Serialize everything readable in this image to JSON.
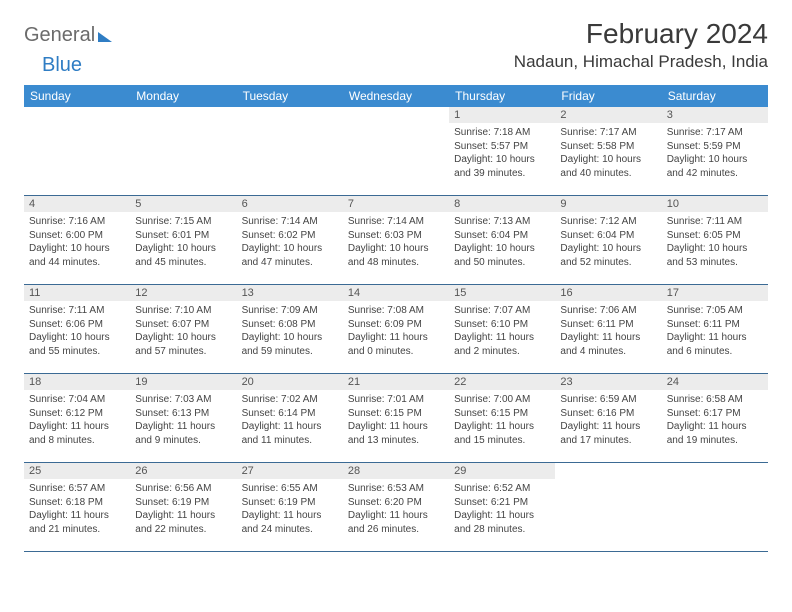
{
  "branding": {
    "logo_word1": "General",
    "logo_word2": "Blue"
  },
  "header": {
    "month_title": "February 2024",
    "location": "Nadaun, Himachal Pradesh, India"
  },
  "colors": {
    "header_bar": "#3b8bd0",
    "week_border": "#3b6a94",
    "daynum_bg": "#ececec",
    "text_dark": "#3a3a3a",
    "logo_gray": "#6b6b6b",
    "logo_blue": "#2f7dc4"
  },
  "weekdays": [
    "Sunday",
    "Monday",
    "Tuesday",
    "Wednesday",
    "Thursday",
    "Friday",
    "Saturday"
  ],
  "weeks": [
    [
      {
        "empty": true
      },
      {
        "empty": true
      },
      {
        "empty": true
      },
      {
        "empty": true
      },
      {
        "n": "1",
        "sr": "Sunrise: 7:18 AM",
        "ss": "Sunset: 5:57 PM",
        "d1": "Daylight: 10 hours",
        "d2": "and 39 minutes."
      },
      {
        "n": "2",
        "sr": "Sunrise: 7:17 AM",
        "ss": "Sunset: 5:58 PM",
        "d1": "Daylight: 10 hours",
        "d2": "and 40 minutes."
      },
      {
        "n": "3",
        "sr": "Sunrise: 7:17 AM",
        "ss": "Sunset: 5:59 PM",
        "d1": "Daylight: 10 hours",
        "d2": "and 42 minutes."
      }
    ],
    [
      {
        "n": "4",
        "sr": "Sunrise: 7:16 AM",
        "ss": "Sunset: 6:00 PM",
        "d1": "Daylight: 10 hours",
        "d2": "and 44 minutes."
      },
      {
        "n": "5",
        "sr": "Sunrise: 7:15 AM",
        "ss": "Sunset: 6:01 PM",
        "d1": "Daylight: 10 hours",
        "d2": "and 45 minutes."
      },
      {
        "n": "6",
        "sr": "Sunrise: 7:14 AM",
        "ss": "Sunset: 6:02 PM",
        "d1": "Daylight: 10 hours",
        "d2": "and 47 minutes."
      },
      {
        "n": "7",
        "sr": "Sunrise: 7:14 AM",
        "ss": "Sunset: 6:03 PM",
        "d1": "Daylight: 10 hours",
        "d2": "and 48 minutes."
      },
      {
        "n": "8",
        "sr": "Sunrise: 7:13 AM",
        "ss": "Sunset: 6:04 PM",
        "d1": "Daylight: 10 hours",
        "d2": "and 50 minutes."
      },
      {
        "n": "9",
        "sr": "Sunrise: 7:12 AM",
        "ss": "Sunset: 6:04 PM",
        "d1": "Daylight: 10 hours",
        "d2": "and 52 minutes."
      },
      {
        "n": "10",
        "sr": "Sunrise: 7:11 AM",
        "ss": "Sunset: 6:05 PM",
        "d1": "Daylight: 10 hours",
        "d2": "and 53 minutes."
      }
    ],
    [
      {
        "n": "11",
        "sr": "Sunrise: 7:11 AM",
        "ss": "Sunset: 6:06 PM",
        "d1": "Daylight: 10 hours",
        "d2": "and 55 minutes."
      },
      {
        "n": "12",
        "sr": "Sunrise: 7:10 AM",
        "ss": "Sunset: 6:07 PM",
        "d1": "Daylight: 10 hours",
        "d2": "and 57 minutes."
      },
      {
        "n": "13",
        "sr": "Sunrise: 7:09 AM",
        "ss": "Sunset: 6:08 PM",
        "d1": "Daylight: 10 hours",
        "d2": "and 59 minutes."
      },
      {
        "n": "14",
        "sr": "Sunrise: 7:08 AM",
        "ss": "Sunset: 6:09 PM",
        "d1": "Daylight: 11 hours",
        "d2": "and 0 minutes."
      },
      {
        "n": "15",
        "sr": "Sunrise: 7:07 AM",
        "ss": "Sunset: 6:10 PM",
        "d1": "Daylight: 11 hours",
        "d2": "and 2 minutes."
      },
      {
        "n": "16",
        "sr": "Sunrise: 7:06 AM",
        "ss": "Sunset: 6:11 PM",
        "d1": "Daylight: 11 hours",
        "d2": "and 4 minutes."
      },
      {
        "n": "17",
        "sr": "Sunrise: 7:05 AM",
        "ss": "Sunset: 6:11 PM",
        "d1": "Daylight: 11 hours",
        "d2": "and 6 minutes."
      }
    ],
    [
      {
        "n": "18",
        "sr": "Sunrise: 7:04 AM",
        "ss": "Sunset: 6:12 PM",
        "d1": "Daylight: 11 hours",
        "d2": "and 8 minutes."
      },
      {
        "n": "19",
        "sr": "Sunrise: 7:03 AM",
        "ss": "Sunset: 6:13 PM",
        "d1": "Daylight: 11 hours",
        "d2": "and 9 minutes."
      },
      {
        "n": "20",
        "sr": "Sunrise: 7:02 AM",
        "ss": "Sunset: 6:14 PM",
        "d1": "Daylight: 11 hours",
        "d2": "and 11 minutes."
      },
      {
        "n": "21",
        "sr": "Sunrise: 7:01 AM",
        "ss": "Sunset: 6:15 PM",
        "d1": "Daylight: 11 hours",
        "d2": "and 13 minutes."
      },
      {
        "n": "22",
        "sr": "Sunrise: 7:00 AM",
        "ss": "Sunset: 6:15 PM",
        "d1": "Daylight: 11 hours",
        "d2": "and 15 minutes."
      },
      {
        "n": "23",
        "sr": "Sunrise: 6:59 AM",
        "ss": "Sunset: 6:16 PM",
        "d1": "Daylight: 11 hours",
        "d2": "and 17 minutes."
      },
      {
        "n": "24",
        "sr": "Sunrise: 6:58 AM",
        "ss": "Sunset: 6:17 PM",
        "d1": "Daylight: 11 hours",
        "d2": "and 19 minutes."
      }
    ],
    [
      {
        "n": "25",
        "sr": "Sunrise: 6:57 AM",
        "ss": "Sunset: 6:18 PM",
        "d1": "Daylight: 11 hours",
        "d2": "and 21 minutes."
      },
      {
        "n": "26",
        "sr": "Sunrise: 6:56 AM",
        "ss": "Sunset: 6:19 PM",
        "d1": "Daylight: 11 hours",
        "d2": "and 22 minutes."
      },
      {
        "n": "27",
        "sr": "Sunrise: 6:55 AM",
        "ss": "Sunset: 6:19 PM",
        "d1": "Daylight: 11 hours",
        "d2": "and 24 minutes."
      },
      {
        "n": "28",
        "sr": "Sunrise: 6:53 AM",
        "ss": "Sunset: 6:20 PM",
        "d1": "Daylight: 11 hours",
        "d2": "and 26 minutes."
      },
      {
        "n": "29",
        "sr": "Sunrise: 6:52 AM",
        "ss": "Sunset: 6:21 PM",
        "d1": "Daylight: 11 hours",
        "d2": "and 28 minutes."
      },
      {
        "empty": true
      },
      {
        "empty": true
      }
    ]
  ]
}
